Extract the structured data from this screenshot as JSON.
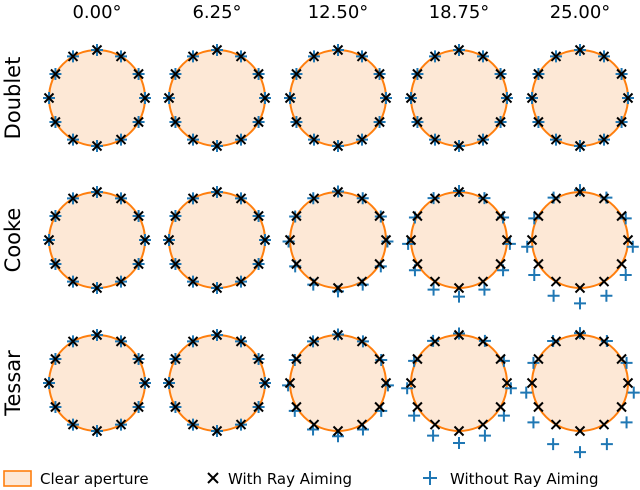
{
  "chart_data": {
    "type": "scatter",
    "column_titles": [
      "0.00°",
      "6.25°",
      "12.50°",
      "18.75°",
      "25.00°"
    ],
    "row_labels": [
      "Doublet",
      "Cooke",
      "Tessar"
    ],
    "aperture_points": 12,
    "grid": false,
    "legend": {
      "placement": "bottom",
      "items": [
        {
          "key": "aperture",
          "label": "Clear aperture",
          "marker": "rect",
          "color": "#ff7f0e",
          "fill": "#fde8d6"
        },
        {
          "key": "with",
          "label": "With Ray Aiming",
          "marker": "x",
          "color": "#000000"
        },
        {
          "key": "without",
          "label": "Without Ray Aiming",
          "marker": "+",
          "color": "#1f77b4"
        }
      ]
    },
    "panels": [
      [
        {
          "field": "0.00°",
          "with": {
            "dy": 0.0,
            "sx": 1.0,
            "sy": 1.0
          },
          "without": {
            "dy": 0.0,
            "sx": 1.0,
            "sy": 1.0
          }
        },
        {
          "field": "6.25°",
          "with": {
            "dy": 0.0,
            "sx": 1.0,
            "sy": 1.0
          },
          "without": {
            "dy": 0.0,
            "sx": 1.0,
            "sy": 1.0
          }
        },
        {
          "field": "12.50°",
          "with": {
            "dy": 0.0,
            "sx": 1.0,
            "sy": 1.0
          },
          "without": {
            "dy": 0.0,
            "sx": 1.0,
            "sy": 1.0
          }
        },
        {
          "field": "18.75°",
          "with": {
            "dy": 0.0,
            "sx": 1.0,
            "sy": 1.0
          },
          "without": {
            "dy": 0.0,
            "sx": 1.0,
            "sy": 1.0
          }
        },
        {
          "field": "25.00°",
          "with": {
            "dy": 0.0,
            "sx": 1.0,
            "sy": 1.0
          },
          "without": {
            "dy": 0.0,
            "sx": 1.0,
            "sy": 1.0
          }
        }
      ],
      [
        {
          "field": "0.00°",
          "with": {
            "dy": 0.0,
            "sx": 1.0,
            "sy": 1.0
          },
          "without": {
            "dy": 0.0,
            "sx": 1.0,
            "sy": 1.0
          }
        },
        {
          "field": "6.25°",
          "with": {
            "dy": 0.0,
            "sx": 1.0,
            "sy": 1.0
          },
          "without": {
            "dy": 0.0,
            "sx": 1.0,
            "sy": 1.0
          }
        },
        {
          "field": "12.50°",
          "with": {
            "dy": 0.0,
            "sx": 1.0,
            "sy": 1.0
          },
          "without": {
            "dy": 0.03,
            "sx": 1.03,
            "sy": 1.04
          }
        },
        {
          "field": "18.75°",
          "with": {
            "dy": 0.0,
            "sx": 1.0,
            "sy": 1.0
          },
          "without": {
            "dy": 0.08,
            "sx": 1.06,
            "sy": 1.1
          }
        },
        {
          "field": "25.00°",
          "with": {
            "dy": 0.0,
            "sx": 1.0,
            "sy": 1.0
          },
          "without": {
            "dy": 0.14,
            "sx": 1.1,
            "sy": 1.18
          }
        }
      ],
      [
        {
          "field": "0.00°",
          "with": {
            "dy": 0.0,
            "sx": 1.0,
            "sy": 1.0
          },
          "without": {
            "dy": 0.0,
            "sx": 1.0,
            "sy": 1.0
          }
        },
        {
          "field": "6.25°",
          "with": {
            "dy": 0.0,
            "sx": 1.0,
            "sy": 1.0
          },
          "without": {
            "dy": 0.0,
            "sx": 1.0,
            "sy": 1.0
          }
        },
        {
          "field": "12.50°",
          "with": {
            "dy": 0.0,
            "sx": 1.0,
            "sy": 1.0
          },
          "without": {
            "dy": 0.05,
            "sx": 1.04,
            "sy": 1.06
          }
        },
        {
          "field": "18.75°",
          "with": {
            "dy": 0.0,
            "sx": 1.0,
            "sy": 1.0
          },
          "without": {
            "dy": 0.11,
            "sx": 1.08,
            "sy": 1.14
          }
        },
        {
          "field": "25.00°",
          "with": {
            "dy": 0.0,
            "sx": 1.0,
            "sy": 1.0
          },
          "without": {
            "dy": 0.2,
            "sx": 1.12,
            "sy": 1.24
          }
        }
      ]
    ]
  }
}
